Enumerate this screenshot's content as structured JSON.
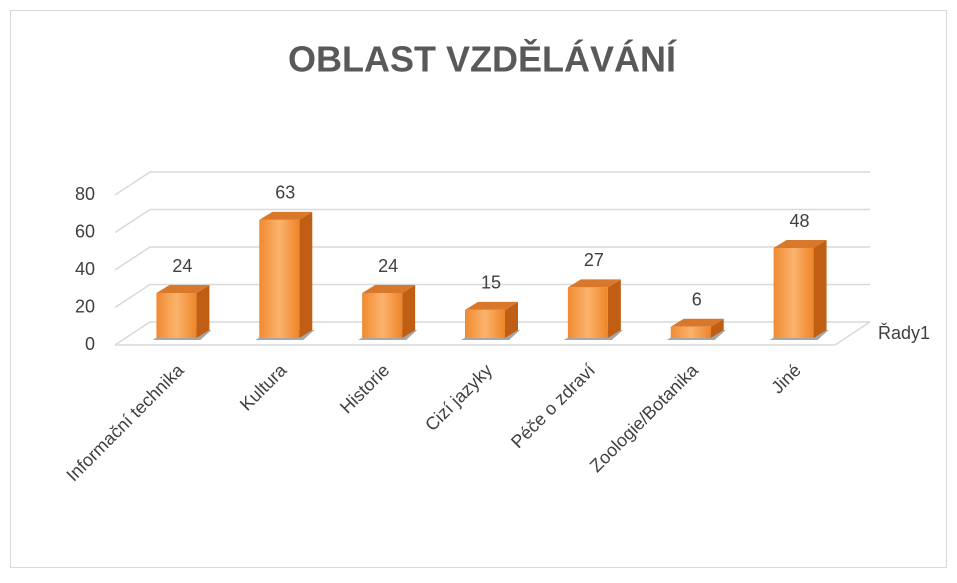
{
  "chart_data": {
    "type": "bar3d",
    "title": "OBLAST VZDĚLÁVÁNÍ",
    "categories": [
      "Informační technika",
      "Kultura",
      "Historie",
      "Cizí jazyky",
      "Péče o zdraví",
      "Zoologie/Botanika",
      "Jiné"
    ],
    "series": [
      {
        "name": "Řady1",
        "color": "#f7963f",
        "values": [
          24,
          63,
          24,
          15,
          27,
          6,
          48
        ]
      }
    ],
    "ylim": [
      0,
      80
    ],
    "yticks": [
      0,
      20,
      40,
      60,
      80
    ],
    "grid": true,
    "data_labels": true
  }
}
